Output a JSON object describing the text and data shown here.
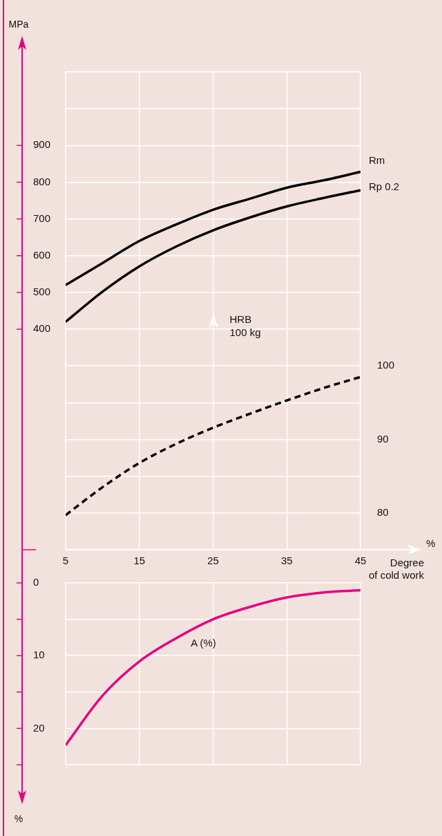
{
  "chart_data": [
    {
      "type": "line",
      "xlabel": "Degree of cold work",
      "ylabel": "MPa",
      "y2label": "HRB 100 kg",
      "annotations": [
        "%"
      ],
      "x": [
        5,
        10,
        15,
        20,
        25,
        30,
        35,
        40,
        45
      ],
      "xlim": [
        5,
        45
      ],
      "xticks": [
        5,
        15,
        25,
        35,
        45
      ],
      "ylim": [
        -200,
        1100
      ],
      "yticks": [
        400,
        500,
        600,
        700,
        800,
        900
      ],
      "y2lim": [
        75,
        140
      ],
      "y2ticks": [
        80,
        {
          "value": 85,
          "label": null
        },
        90,
        {
          "value": 95,
          "label": null
        },
        100,
        {
          "value": 105,
          "label": null
        },
        {
          "value": 110,
          "label": null
        },
        {
          "value": 115,
          "label": null
        },
        {
          "value": 120,
          "label": null
        },
        {
          "value": 125,
          "label": null
        },
        {
          "value": 130,
          "label": null
        },
        {
          "value": 135,
          "label": null
        },
        {
          "value": 140,
          "label": null
        }
      ],
      "grid": true,
      "marker": "none",
      "line_style": "solid",
      "series": [
        {
          "name": "Rm",
          "color": "#000000",
          "values": [
            520,
            580,
            640,
            685,
            725,
            755,
            785,
            805,
            828
          ]
        },
        {
          "name": "Rp 0.2",
          "color": "#000000",
          "values": [
            420,
            502,
            571,
            625,
            669,
            704,
            734,
            757,
            778
          ]
        },
        {
          "color": "#000000",
          "axis": "y2",
          "line_style": "dashed",
          "values": [
            79.7,
            83.5,
            86.8,
            89.4,
            91.6,
            93.5,
            95.3,
            97.0,
            98.5
          ]
        }
      ]
    },
    {
      "type": "line",
      "ylabel": "%",
      "x": [
        5,
        10,
        15,
        20,
        25,
        30,
        35,
        40,
        45
      ],
      "xlim": [
        5,
        45
      ],
      "xticks": [
        5,
        15,
        25,
        35,
        45
      ],
      "ylim": [
        25,
        0
      ],
      "yticks": [
        0,
        {
          "value": 5,
          "label": null
        },
        10,
        {
          "value": 15,
          "label": null
        },
        20,
        {
          "value": 25,
          "label": null
        }
      ],
      "grid": true,
      "tick_labels": "y",
      "marker": "none",
      "line_style": "solid",
      "series": [
        {
          "name": "A (%)",
          "color": "#e6007e",
          "values": [
            22.3,
            15.5,
            10.8,
            7.6,
            5.0,
            3.3,
            2.0,
            1.3,
            1.0
          ]
        }
      ]
    }
  ]
}
